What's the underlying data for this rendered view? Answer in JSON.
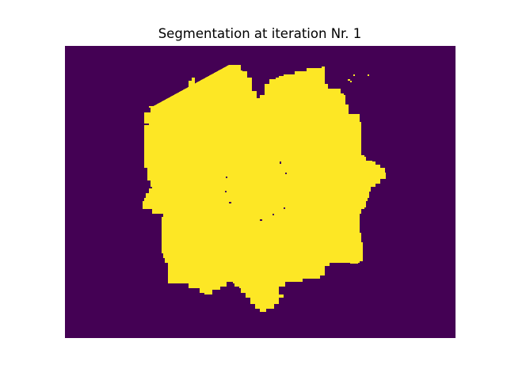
{
  "title": "Segmentation at iteration Nr. 1",
  "colors": {
    "background_class": "#440154",
    "foreground_class": "#fde725",
    "figure_background": "#ffffff"
  },
  "image": {
    "description_kind": "binary segmentation mask",
    "colormap": "viridis",
    "axes_visible": false
  }
}
